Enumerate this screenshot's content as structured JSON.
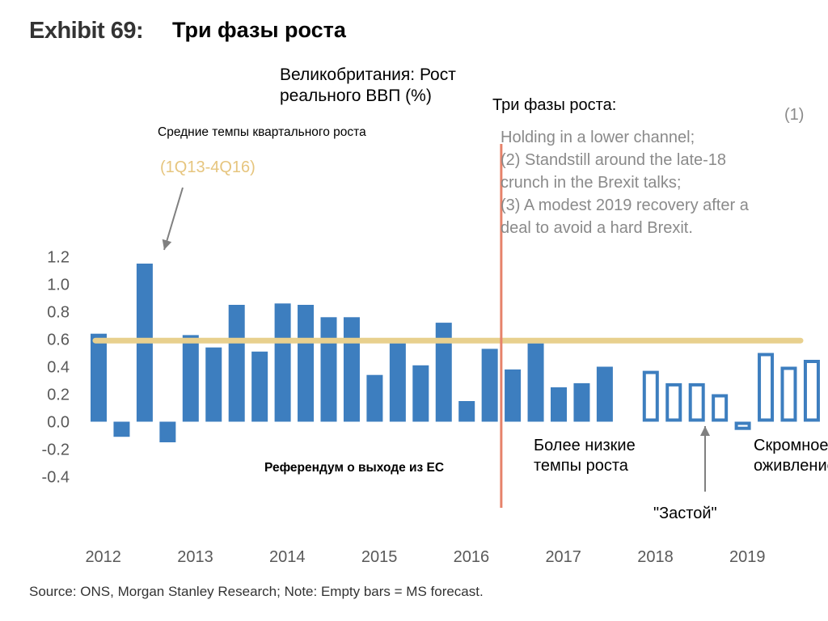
{
  "exhibit_label": "Exhibit 69:",
  "title": "Три фазы роста",
  "subtitle": "Великобритания: Рост реального ВВП (%)",
  "annotations": {
    "avg_label": "Средние темпы квартального роста",
    "avg_period": "(1Q13-4Q16)",
    "phases_title": "Три фазы роста:",
    "phases_num": "(1)",
    "phases_lines": [
      "Holding in a lower channel;",
      "(2) Standstill around the late-18",
      "crunch in the Brexit talks;",
      "(3) A modest 2019 recovery after a",
      "deal to avoid a hard Brexit."
    ],
    "referendum": "Референдум о выходе из ЕС",
    "lower_growth": "Более низкие темпы роста",
    "standstill": "\"Застой\"",
    "recovery": "Скромное оживление"
  },
  "source": "Source: ONS, Morgan Stanley Research; Note: Empty bars = MS forecast.",
  "colors": {
    "bar": "#3d7ebf",
    "average_line": "#e8d08e",
    "average_text": "#e6c57e",
    "referendum_line": "#e6826a",
    "arrow": "#808080",
    "phase_text": "#8a8a8a"
  },
  "chart_data": {
    "type": "bar",
    "title": "Великобритания: Рост реального ВВП (%)",
    "ylabel": "",
    "xlabel": "",
    "ylim": [
      -0.4,
      1.2
    ],
    "yticks": [
      1.2,
      1.0,
      0.8,
      0.6,
      0.4,
      0.2,
      0.0,
      -0.2,
      -0.4
    ],
    "ytick_labels": [
      "1.2",
      "1.0",
      "0.8",
      "0.6",
      "0.4",
      "0.2",
      "0.0",
      "-0.2",
      "-0.4"
    ],
    "year_labels": [
      "2012",
      "2013",
      "2014",
      "2015",
      "2016",
      "2017",
      "2018",
      "2019"
    ],
    "average_line_value": 0.59,
    "referendum_after_quarter": 18,
    "series": [
      {
        "name": "Actual",
        "style": "filled",
        "quarters": [
          "1Q12",
          "2Q12",
          "3Q12",
          "4Q12",
          "1Q13",
          "2Q13",
          "3Q13",
          "4Q13",
          "1Q14",
          "2Q14",
          "3Q14",
          "4Q14",
          "1Q15",
          "2Q15",
          "3Q15",
          "4Q15",
          "1Q16",
          "2Q16",
          "3Q16",
          "4Q16",
          "1Q17",
          "2Q17",
          "3Q17",
          "4Q17"
        ],
        "values": [
          0.64,
          -0.11,
          1.15,
          -0.15,
          0.63,
          0.54,
          0.85,
          0.51,
          0.86,
          0.85,
          0.76,
          0.76,
          0.34,
          0.57,
          0.41,
          0.72,
          0.15,
          0.53,
          0.38,
          0.57,
          0.25,
          0.28,
          0.4,
          0.0
        ]
      },
      {
        "name": "MS forecast",
        "style": "hollow",
        "quarters": [
          "1Q18",
          "2Q18",
          "3Q18",
          "4Q18",
          "1Q19",
          "2Q19",
          "3Q19",
          "4Q19"
        ],
        "values": [
          0.37,
          0.28,
          0.28,
          0.2,
          -0.06,
          0.5,
          0.4,
          0.45
        ]
      }
    ]
  }
}
